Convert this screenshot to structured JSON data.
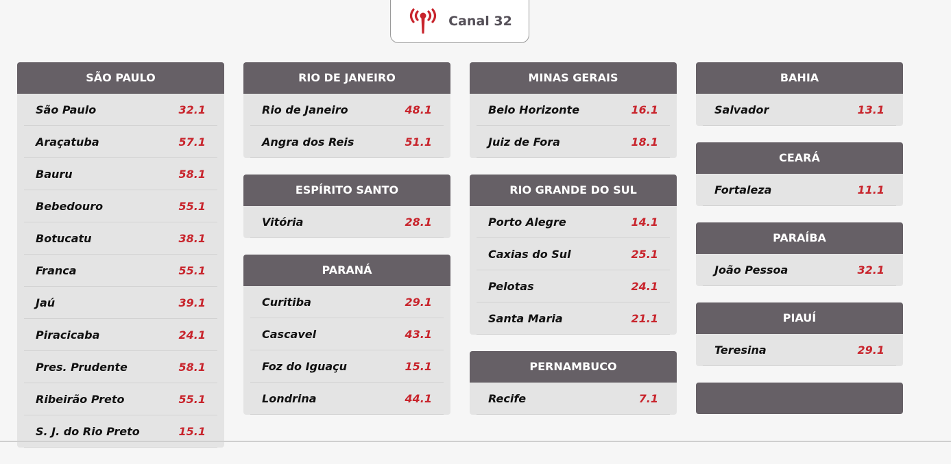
{
  "header": {
    "title": "Canal 32",
    "icon": "broadcast-antenna-icon",
    "icon_color": "#c8242c"
  },
  "colors": {
    "card_header": "#666066",
    "card_body": "#e4e4e4",
    "channel_number": "#c8242c"
  },
  "columns": [
    [
      {
        "state": "SÃO PAULO",
        "cities": [
          {
            "name": "São Paulo",
            "channel": "32.1"
          },
          {
            "name": "Araçatuba",
            "channel": "57.1"
          },
          {
            "name": "Bauru",
            "channel": "58.1"
          },
          {
            "name": "Bebedouro",
            "channel": "55.1"
          },
          {
            "name": "Botucatu",
            "channel": "38.1"
          },
          {
            "name": "Franca",
            "channel": "55.1"
          },
          {
            "name": "Jaú",
            "channel": "39.1"
          },
          {
            "name": "Piracicaba",
            "channel": "24.1"
          },
          {
            "name": "Pres. Prudente",
            "channel": "58.1"
          },
          {
            "name": "Ribeirão Preto",
            "channel": "55.1"
          },
          {
            "name": "S. J. do Rio Preto",
            "channel": "15.1"
          }
        ]
      }
    ],
    [
      {
        "state": "RIO DE JANEIRO",
        "cities": [
          {
            "name": "Rio de Janeiro",
            "channel": "48.1"
          },
          {
            "name": "Angra dos Reis",
            "channel": "51.1"
          }
        ]
      },
      {
        "state": "ESPÍRITO SANTO",
        "cities": [
          {
            "name": "Vitória",
            "channel": "28.1"
          }
        ]
      },
      {
        "state": "PARANÁ",
        "cities": [
          {
            "name": "Curitiba",
            "channel": "29.1"
          },
          {
            "name": "Cascavel",
            "channel": "43.1"
          },
          {
            "name": "Foz do Iguaçu",
            "channel": "15.1"
          },
          {
            "name": "Londrina",
            "channel": "44.1"
          }
        ]
      }
    ],
    [
      {
        "state": "MINAS GERAIS",
        "cities": [
          {
            "name": "Belo Horizonte",
            "channel": "16.1"
          },
          {
            "name": "Juiz de Fora",
            "channel": "18.1"
          }
        ]
      },
      {
        "state": "RIO GRANDE DO SUL",
        "cities": [
          {
            "name": "Porto Alegre",
            "channel": "14.1"
          },
          {
            "name": "Caxias do Sul",
            "channel": "25.1"
          },
          {
            "name": "Pelotas",
            "channel": "24.1"
          },
          {
            "name": "Santa Maria",
            "channel": "21.1"
          }
        ]
      },
      {
        "state": "PERNAMBUCO",
        "cities": [
          {
            "name": "Recife",
            "channel": "7.1"
          }
        ]
      }
    ],
    [
      {
        "state": "BAHIA",
        "cities": [
          {
            "name": "Salvador",
            "channel": "13.1"
          }
        ]
      },
      {
        "state": "CEARÁ",
        "cities": [
          {
            "name": "Fortaleza",
            "channel": "11.1"
          }
        ]
      },
      {
        "state": "PARAÍBA",
        "cities": [
          {
            "name": "João Pessoa",
            "channel": "32.1"
          }
        ]
      },
      {
        "state": "PIAUÍ",
        "cities": [
          {
            "name": "Teresina",
            "channel": "29.1"
          }
        ]
      },
      {
        "state": "",
        "cities": []
      }
    ]
  ]
}
